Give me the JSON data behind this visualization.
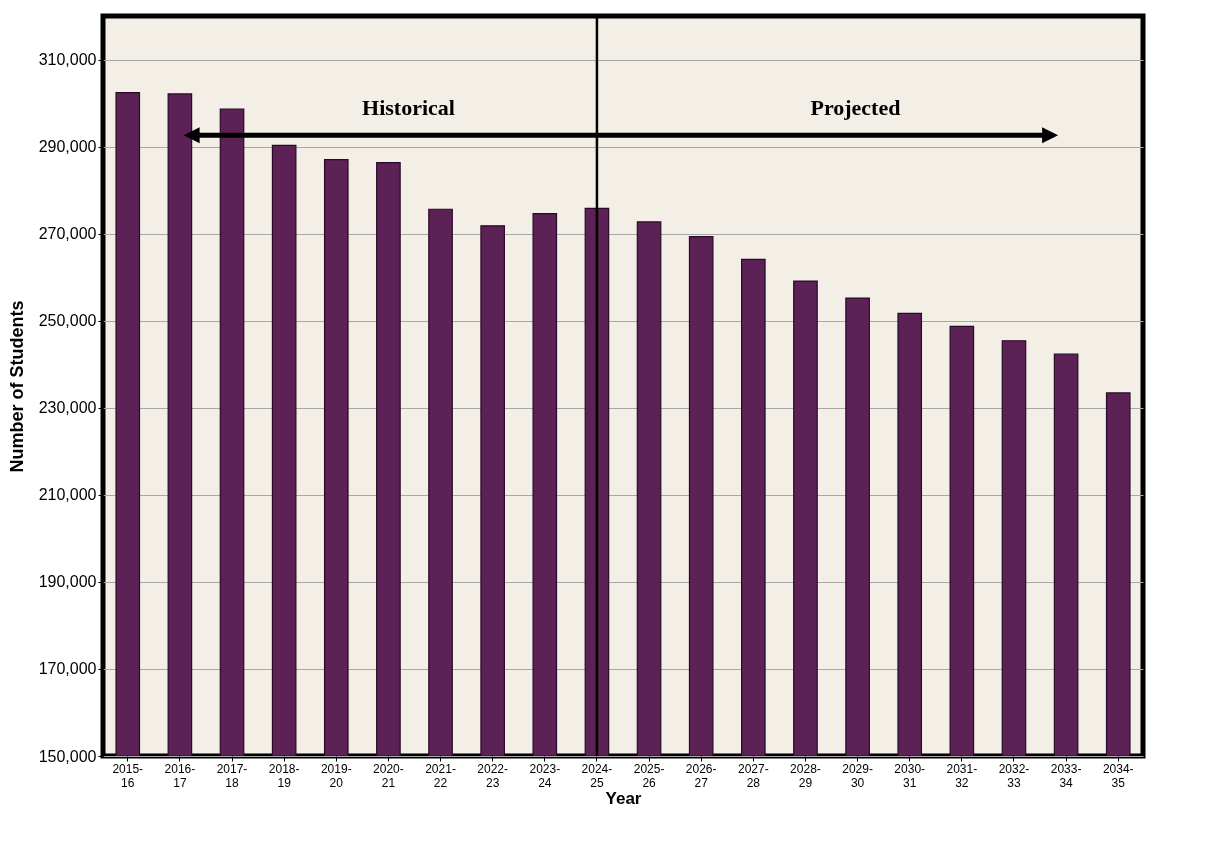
{
  "chart_data": {
    "type": "bar",
    "xlabel": "Year",
    "ylabel": "Number of Students",
    "categories": [
      "2015-16",
      "2016-17",
      "2017-18",
      "2018-19",
      "2019-20",
      "2020-21",
      "2021-22",
      "2022-23",
      "2023-24",
      "2024-25",
      "2025-26",
      "2026-27",
      "2027-28",
      "2028-29",
      "2029-30",
      "2030-31",
      "2031-32",
      "2032-33",
      "2033-34",
      "2034-35"
    ],
    "values": [
      302400,
      302100,
      298600,
      290300,
      287000,
      286300,
      275600,
      271800,
      274600,
      275800,
      272700,
      269300,
      264100,
      259100,
      255200,
      251700,
      248700,
      245400,
      242300,
      233400
    ],
    "color": "#5c2155",
    "ylim": [
      150000,
      320000
    ],
    "yticks": [
      {
        "value": 150000,
        "label": "150,000"
      },
      {
        "value": 170000,
        "label": "170,000"
      },
      {
        "value": 190000,
        "label": "190,000"
      },
      {
        "value": 210000,
        "label": "210,000"
      },
      {
        "value": 230000,
        "label": "230,000"
      },
      {
        "value": 250000,
        "label": "250,000"
      },
      {
        "value": 270000,
        "label": "270,000"
      },
      {
        "value": 290000,
        "label": "290,000"
      },
      {
        "value": 310000,
        "label": "310,000"
      }
    ],
    "grid": "y",
    "ref_lines": [
      {
        "axis": "x",
        "value": "2024-25"
      }
    ],
    "annotations": [
      "Historical",
      "Projected"
    ]
  }
}
